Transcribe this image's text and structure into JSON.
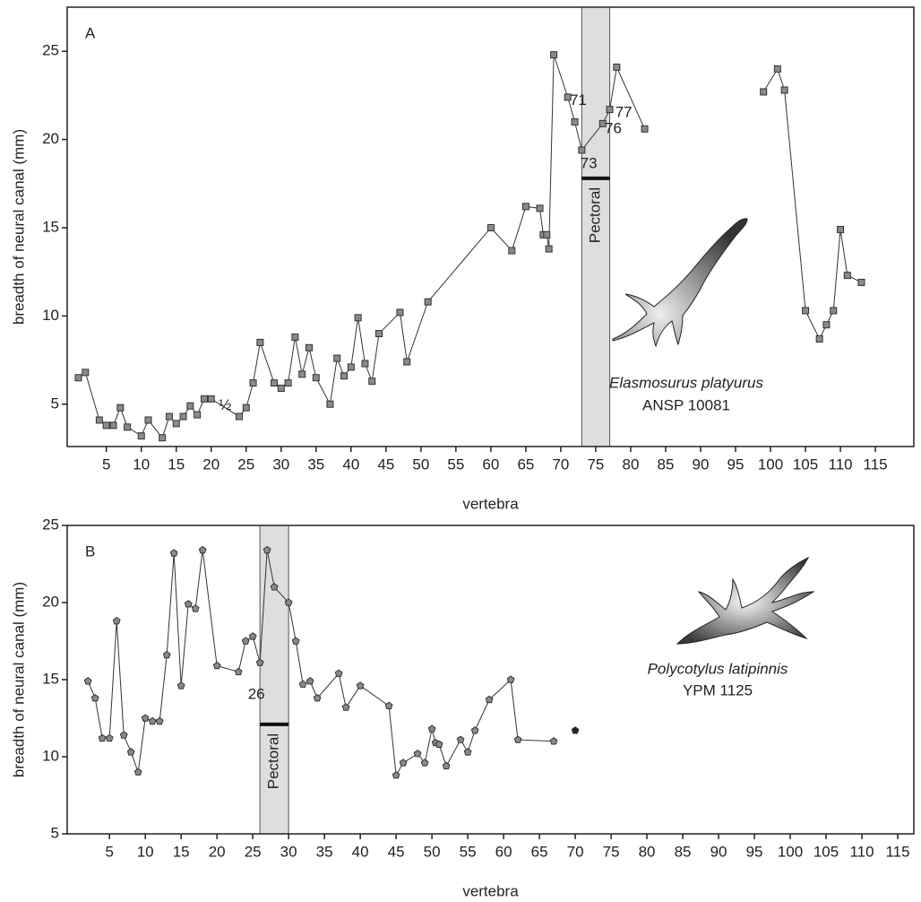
{
  "chart_data": [
    {
      "type": "line",
      "panel": "A",
      "marker": "square",
      "xlim": [
        -0.6,
        120.5
      ],
      "ylim": [
        2.6,
        27.5
      ],
      "xticks": [
        5,
        10,
        15,
        20,
        25,
        30,
        35,
        40,
        45,
        50,
        55,
        60,
        65,
        70,
        75,
        80,
        85,
        90,
        95,
        100,
        105,
        110,
        115
      ],
      "yticks": [
        5,
        10,
        15,
        20,
        25
      ],
      "x_label": "vertebra",
      "y_label": "breadth of neural canal (mm)",
      "species": "Elasmosurus platyurus",
      "specimen": "ANSP 10081",
      "span": {
        "x": [
          73,
          77
        ],
        "y": 17.8,
        "label": "Pectoral"
      },
      "series": [
        {
          "color": "#8a8a8a",
          "x": [
            1,
            2,
            4,
            5,
            6,
            7,
            8,
            10,
            11,
            13,
            14,
            15,
            16,
            17,
            18,
            19,
            20,
            24,
            25,
            26,
            27,
            29,
            30,
            31,
            32,
            33,
            34,
            35,
            37,
            38,
            39,
            40,
            41,
            42,
            43,
            44,
            47,
            48,
            51,
            60,
            63,
            65,
            67,
            67.5,
            68,
            68.3,
            69,
            71,
            72,
            73,
            76,
            77,
            78,
            82
          ],
          "values": [
            6.5,
            6.8,
            4.1,
            3.8,
            3.8,
            4.8,
            3.7,
            3.2,
            4.1,
            3.1,
            4.3,
            3.9,
            4.3,
            4.9,
            4.4,
            5.3,
            5.3,
            4.3,
            4.8,
            6.2,
            8.5,
            6.2,
            5.9,
            6.2,
            8.8,
            6.7,
            8.2,
            6.5,
            5.0,
            7.6,
            6.6,
            7.1,
            9.9,
            7.3,
            6.3,
            9.0,
            10.2,
            7.4,
            10.8,
            15.0,
            13.7,
            16.2,
            16.1,
            14.6,
            14.6,
            13.8,
            24.8,
            22.4,
            21.0,
            19.4,
            20.9,
            21.7,
            24.1,
            20.6
          ]
        },
        {
          "color": "#8a8a8a",
          "x": [
            99,
            101,
            102,
            105,
            107,
            108,
            109,
            110,
            111,
            113
          ],
          "values": [
            22.7,
            24.0,
            22.8,
            10.3,
            8.7,
            9.5,
            10.3,
            14.9,
            12.3,
            11.9
          ]
        }
      ],
      "annotations": [
        {
          "text": "½",
          "x": 22,
          "y": 4.9
        },
        {
          "text": "71",
          "x": 72.5,
          "y": 22.2
        },
        {
          "text": "73",
          "x": 74,
          "y": 18.6
        },
        {
          "text": "76",
          "x": 77.5,
          "y": 20.6
        },
        {
          "text": "77",
          "x": 79,
          "y": 21.5
        }
      ]
    },
    {
      "type": "line",
      "panel": "B",
      "marker": "pentagon",
      "xlim": [
        -0.9,
        117.25
      ],
      "ylim": [
        5,
        25
      ],
      "xticks": [
        5,
        10,
        15,
        20,
        25,
        30,
        35,
        40,
        45,
        50,
        55,
        60,
        65,
        70,
        75,
        80,
        85,
        90,
        95,
        100,
        105,
        110,
        115
      ],
      "yticks": [
        5,
        10,
        15,
        20,
        25
      ],
      "x_label": "vertebra",
      "y_label": "breadth of neural canal (mm)",
      "species": "Polycotylus latipinnis",
      "specimen": "YPM 1125",
      "span": {
        "x": [
          26,
          30
        ],
        "y": 12.1,
        "label": "Pectoral"
      },
      "series": [
        {
          "color": "#8a8a8a",
          "x": [
            2,
            3,
            4,
            5,
            6,
            7,
            8,
            9,
            10,
            11,
            12,
            13,
            14,
            15,
            16,
            17,
            18,
            20,
            23,
            24,
            25,
            26,
            27,
            28,
            30,
            31,
            32,
            33,
            34,
            37,
            38,
            40,
            44,
            45,
            46,
            48,
            49,
            50,
            50.5,
            51,
            52,
            54,
            55,
            56,
            58,
            61,
            62,
            67
          ],
          "values": [
            14.9,
            13.8,
            11.2,
            11.2,
            18.8,
            11.4,
            10.3,
            9.0,
            12.5,
            12.3,
            12.3,
            16.6,
            23.2,
            14.6,
            19.9,
            19.6,
            23.4,
            15.9,
            15.5,
            17.5,
            17.8,
            16.1,
            23.4,
            21.0,
            20.0,
            17.5,
            14.7,
            14.9,
            13.8,
            15.4,
            13.2,
            14.6,
            13.3,
            8.8,
            9.6,
            10.2,
            9.6,
            11.8,
            10.9,
            10.8,
            9.4,
            11.1,
            10.3,
            11.7,
            13.7,
            15.0,
            11.1,
            11.0
          ]
        },
        {
          "color": "#222222",
          "x": [
            70
          ],
          "values": [
            11.7
          ]
        }
      ],
      "annotations": [
        {
          "text": "26",
          "x": 25.5,
          "y": 14.0
        }
      ]
    }
  ]
}
